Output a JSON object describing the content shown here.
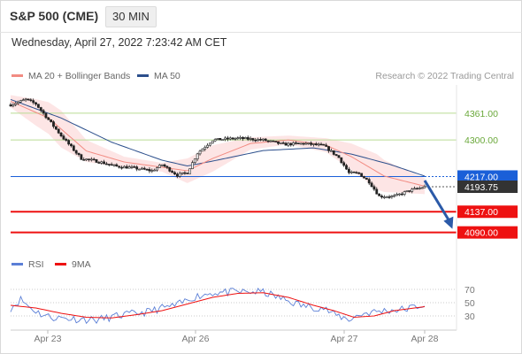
{
  "header": {
    "symbol": "S&P 500 (CME)",
    "timeframe": "30 MIN",
    "timestamp": "Wednesday, April 27, 2022 7:23:42 AM CET"
  },
  "legend": {
    "ma20": "MA 20 + Bollinger Bands",
    "ma50": "MA 50",
    "credit": "Research © 2022 Trading Central",
    "rsi": "RSI",
    "ma9": "9MA"
  },
  "colors": {
    "bollinger_band": "#fde0e0",
    "ma20": "#f28b82",
    "ma50": "#2c4f8c",
    "resistance": "#b9dc95",
    "support": "#ee1111",
    "current": "#3a3a3a",
    "pivot": "#1a5fd8",
    "arrow": "#2b5aa8",
    "rsi": "#5b7fd6",
    "rsi_ma": "#ee1111"
  },
  "chart_data": [
    {
      "type": "candlestick",
      "title": "S&P 500 (CME)",
      "timeframe": "30 MIN",
      "x_labels": [
        "Apr 23",
        "Apr 26",
        "Apr 27",
        "Apr 28"
      ],
      "ylim": [
        4045,
        4425
      ],
      "levels": [
        {
          "value": 4361.0,
          "label": "4361.00",
          "kind": "resistance"
        },
        {
          "value": 4300.0,
          "label": "4300.00",
          "kind": "resistance"
        },
        {
          "value": 4217.0,
          "label": "4217.00",
          "kind": "pivot"
        },
        {
          "value": 4193.75,
          "label": "4193.75",
          "kind": "current"
        },
        {
          "value": 4137.0,
          "label": "4137.00",
          "kind": "support"
        },
        {
          "value": 4090.0,
          "label": "4090.00",
          "kind": "support"
        }
      ],
      "path_key_points": [
        [
          0,
          4380
        ],
        [
          6,
          4392
        ],
        [
          10,
          4382
        ],
        [
          20,
          4310
        ],
        [
          28,
          4258
        ],
        [
          34,
          4252
        ],
        [
          42,
          4240
        ],
        [
          48,
          4237
        ],
        [
          56,
          4230
        ],
        [
          60,
          4244
        ],
        [
          66,
          4220
        ],
        [
          70,
          4226
        ],
        [
          74,
          4270
        ],
        [
          80,
          4300
        ],
        [
          90,
          4304
        ],
        [
          100,
          4300
        ],
        [
          108,
          4290
        ],
        [
          116,
          4292
        ],
        [
          124,
          4287
        ],
        [
          130,
          4260
        ],
        [
          134,
          4225
        ],
        [
          138,
          4224
        ],
        [
          142,
          4205
        ],
        [
          146,
          4172
        ],
        [
          152,
          4172
        ],
        [
          158,
          4185
        ],
        [
          164,
          4193.75
        ]
      ],
      "ma50_key_points": [
        [
          0,
          4392
        ],
        [
          20,
          4350
        ],
        [
          40,
          4295
        ],
        [
          60,
          4254
        ],
        [
          70,
          4241
        ],
        [
          80,
          4252
        ],
        [
          100,
          4276
        ],
        [
          120,
          4282
        ],
        [
          135,
          4268
        ],
        [
          150,
          4245
        ],
        [
          164,
          4218
        ]
      ],
      "ma20_key_points": [
        [
          0,
          4388
        ],
        [
          15,
          4350
        ],
        [
          30,
          4275
        ],
        [
          45,
          4250
        ],
        [
          60,
          4238
        ],
        [
          70,
          4230
        ],
        [
          80,
          4258
        ],
        [
          95,
          4292
        ],
        [
          110,
          4300
        ],
        [
          125,
          4288
        ],
        [
          135,
          4262
        ],
        [
          148,
          4218
        ],
        [
          164,
          4195
        ]
      ],
      "bollinger_halfwidth_key_points": [
        [
          0,
          14
        ],
        [
          10,
          30
        ],
        [
          20,
          42
        ],
        [
          30,
          25
        ],
        [
          45,
          12
        ],
        [
          60,
          10
        ],
        [
          70,
          28
        ],
        [
          80,
          30
        ],
        [
          95,
          14
        ],
        [
          110,
          10
        ],
        [
          125,
          16
        ],
        [
          135,
          30
        ],
        [
          145,
          40
        ],
        [
          155,
          28
        ],
        [
          164,
          18
        ]
      ],
      "arrow": {
        "from": [
          164,
          4208
        ],
        "to": [
          175,
          4098
        ],
        "direction": "down"
      }
    },
    {
      "type": "line",
      "title": "RSI",
      "series_names": [
        "RSI",
        "9MA"
      ],
      "yticks": [
        70,
        50,
        30
      ],
      "ylim": [
        10,
        90
      ],
      "rsi_key_points": [
        [
          0,
          42
        ],
        [
          4,
          55
        ],
        [
          8,
          42
        ],
        [
          12,
          33
        ],
        [
          16,
          28
        ],
        [
          24,
          26
        ],
        [
          34,
          24
        ],
        [
          44,
          31
        ],
        [
          54,
          36
        ],
        [
          60,
          42
        ],
        [
          66,
          46
        ],
        [
          72,
          58
        ],
        [
          80,
          65
        ],
        [
          90,
          66
        ],
        [
          100,
          66
        ],
        [
          108,
          55
        ],
        [
          116,
          45
        ],
        [
          124,
          42
        ],
        [
          128,
          32
        ],
        [
          134,
          25
        ],
        [
          140,
          34
        ],
        [
          148,
          38
        ],
        [
          156,
          40
        ],
        [
          164,
          47
        ]
      ],
      "rsi_ma_key_points": [
        [
          0,
          46
        ],
        [
          10,
          42
        ],
        [
          20,
          34
        ],
        [
          30,
          28
        ],
        [
          40,
          27
        ],
        [
          50,
          32
        ],
        [
          60,
          38
        ],
        [
          70,
          48
        ],
        [
          80,
          58
        ],
        [
          90,
          64
        ],
        [
          100,
          65
        ],
        [
          110,
          58
        ],
        [
          120,
          46
        ],
        [
          128,
          38
        ],
        [
          136,
          28
        ],
        [
          144,
          30
        ],
        [
          152,
          38
        ],
        [
          164,
          44
        ]
      ]
    }
  ]
}
